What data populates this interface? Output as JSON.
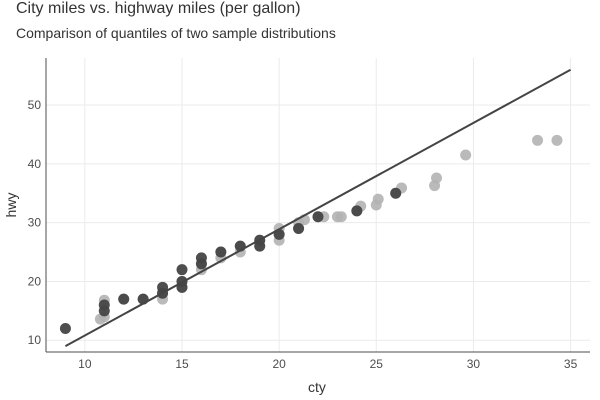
{
  "chart_data": {
    "type": "scatter",
    "title": "City miles vs. highway miles (per gallon)",
    "subtitle": "Comparison of quantiles of two sample distributions",
    "xlabel": "cty",
    "ylabel": "hwy",
    "xlim": [
      8,
      36
    ],
    "ylim": [
      8,
      58
    ],
    "x_ticks": [
      10,
      15,
      20,
      25,
      30,
      35
    ],
    "y_ticks": [
      10,
      20,
      30,
      40,
      50
    ],
    "grid": true,
    "colors": {
      "light": "#b3b3b3",
      "dark": "#444444",
      "line": "#444444",
      "grid": "#ebebeb",
      "axis": "#4d4d4d"
    },
    "series": [
      {
        "points": [
          [
            10.8,
            13.6
          ],
          [
            11.0,
            14.0
          ],
          [
            11.0,
            16.8
          ],
          [
            12.0,
            17.0
          ],
          [
            13.0,
            17.0
          ],
          [
            14.0,
            17.0
          ],
          [
            14.0,
            18.0
          ],
          [
            15.0,
            19.0
          ],
          [
            15.0,
            20.0
          ],
          [
            16.0,
            22.0
          ],
          [
            16.0,
            23.0
          ],
          [
            17.0,
            24.0
          ],
          [
            17.0,
            25.0
          ],
          [
            18.0,
            25.0
          ],
          [
            18.0,
            26.0
          ],
          [
            19.0,
            26.0
          ],
          [
            19.0,
            27.0
          ],
          [
            20.0,
            27.0
          ],
          [
            20.0,
            28.0
          ],
          [
            20.0,
            29.0
          ],
          [
            21.0,
            29.0
          ],
          [
            21.0,
            30.0
          ],
          [
            21.3,
            30.5
          ],
          [
            22.0,
            31.0
          ],
          [
            22.3,
            31.0
          ],
          [
            23.0,
            31.0
          ],
          [
            23.2,
            31.0
          ],
          [
            24.0,
            32.0
          ],
          [
            24.2,
            32.8
          ],
          [
            25.0,
            33.0
          ],
          [
            25.1,
            34.0
          ],
          [
            26.0,
            35.0
          ],
          [
            26.3,
            35.9
          ],
          [
            28.0,
            36.3
          ],
          [
            28.1,
            37.6
          ],
          [
            29.6,
            41.5
          ],
          [
            33.3,
            44.0
          ],
          [
            34.3,
            44.0
          ]
        ]
      },
      {
        "points": [
          [
            9,
            12
          ],
          [
            11,
            15
          ],
          [
            11,
            16
          ],
          [
            12,
            17
          ],
          [
            13,
            17
          ],
          [
            14,
            18
          ],
          [
            14,
            19
          ],
          [
            15,
            19
          ],
          [
            15,
            20
          ],
          [
            15,
            22
          ],
          [
            16,
            23
          ],
          [
            16,
            24
          ],
          [
            17,
            25
          ],
          [
            18,
            26
          ],
          [
            19,
            26
          ],
          [
            19,
            27
          ],
          [
            20,
            28
          ],
          [
            21,
            29
          ],
          [
            22,
            31
          ],
          [
            24,
            32
          ],
          [
            26,
            35
          ]
        ]
      }
    ],
    "reference_line": {
      "x": [
        9,
        35
      ],
      "y": [
        9,
        56
      ]
    }
  }
}
